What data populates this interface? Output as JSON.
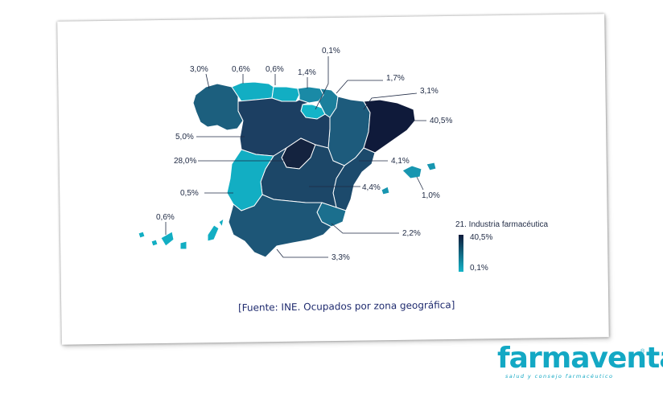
{
  "map": {
    "source_note": "[Fuente: INE. Ocupados por zona geográfica]",
    "legend": {
      "title": "21. Industria farmacéutica",
      "max_label": "40,5%",
      "min_label": "0,1%",
      "color_high": "#0f1a3a",
      "color_low": "#14b4c8"
    },
    "regions": [
      {
        "name": "Galicia",
        "value_label": "3,0%",
        "value": 3.0,
        "color": "#1c5f7e"
      },
      {
        "name": "Asturias",
        "value_label": "0,6%",
        "value": 0.6,
        "color": "#12aec3"
      },
      {
        "name": "Cantabria",
        "value_label": "0,6%",
        "value": 0.6,
        "color": "#12aec3"
      },
      {
        "name": "País Vasco",
        "value_label": "1,4%",
        "value": 1.4,
        "color": "#1a8aa6"
      },
      {
        "name": "La Rioja",
        "value_label": "0,1%",
        "value": 0.1,
        "color": "#14b4c8"
      },
      {
        "name": "Navarra",
        "value_label": "1,7%",
        "value": 1.7,
        "color": "#1b7f9c"
      },
      {
        "name": "Aragón",
        "value_label": "3,1%",
        "value": 3.1,
        "color": "#1d5b7c"
      },
      {
        "name": "Cataluña",
        "value_label": "40,5%",
        "value": 40.5,
        "color": "#0f1a3a"
      },
      {
        "name": "Castilla y León",
        "value_label": "5,0%",
        "value": 5.0,
        "color": "#1c3f62"
      },
      {
        "name": "Madrid",
        "value_label": "28,0%",
        "value": 28.0,
        "color": "#14233f"
      },
      {
        "name": "Comunidad Valenciana",
        "value_label": "4,1%",
        "value": 4.1,
        "color": "#1c4a6c"
      },
      {
        "name": "Illes Balears",
        "value_label": "1,0%",
        "value": 1.0,
        "color": "#1896b0"
      },
      {
        "name": "Castilla-La Mancha",
        "value_label": "4,4%",
        "value": 4.4,
        "color": "#1c4768"
      },
      {
        "name": "Extremadura",
        "value_label": "0,5%",
        "value": 0.5,
        "color": "#12aec3"
      },
      {
        "name": "Canarias",
        "value_label": "0,6%",
        "value": 0.6,
        "color": "#12aec3"
      },
      {
        "name": "Región de Murcia",
        "value_label": "2,2%",
        "value": 2.2,
        "color": "#1b6f8e"
      },
      {
        "name": "Andalucía",
        "value_label": "3,3%",
        "value": 3.3,
        "color": "#1d5677"
      }
    ]
  },
  "brand": {
    "name": "farmaventas",
    "tagline": "salud y consejo farmacéutico",
    "registered_mark": "®",
    "color": "#13a8c4"
  }
}
